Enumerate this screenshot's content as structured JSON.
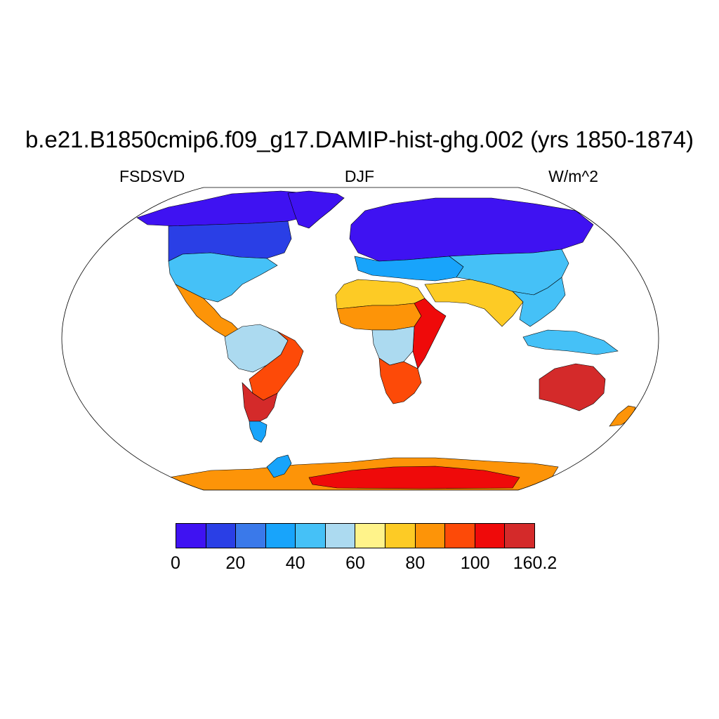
{
  "title": "b.e21.B1850cmip6.f09_g17.DAMIP-hist-ghg.002 (yrs 1850-1874)",
  "variable": "FSDSVD",
  "season": "DJF",
  "units": "W/m^2",
  "colorbar": {
    "colors": [
      "#3f12f2",
      "#2a3fe6",
      "#3a79ea",
      "#18a4fb",
      "#45c1f7",
      "#acdaf0",
      "#fff38a",
      "#fdcb25",
      "#fd9408",
      "#fd4a08",
      "#ef0a0a",
      "#d42a2a"
    ],
    "labels": [
      {
        "text": "0",
        "index": 0
      },
      {
        "text": "20",
        "index": 2
      },
      {
        "text": "40",
        "index": 4
      },
      {
        "text": "60",
        "index": 6
      },
      {
        "text": "80",
        "index": 8
      },
      {
        "text": "100",
        "index": 10
      },
      {
        "text": "160.2",
        "index": 12
      }
    ]
  },
  "map": {
    "projection": "Robinson",
    "ocean_color": "#ffffff",
    "regions": [
      {
        "id": "north-america-arctic",
        "level": 0
      },
      {
        "id": "greenland",
        "level": 0
      },
      {
        "id": "canada",
        "level": 1
      },
      {
        "id": "united-states",
        "level": 4
      },
      {
        "id": "central-america",
        "level": 8
      },
      {
        "id": "amazon",
        "level": 5
      },
      {
        "id": "south-america-east",
        "level": 9
      },
      {
        "id": "argentina",
        "level": 11
      },
      {
        "id": "patagonia",
        "level": 3
      },
      {
        "id": "eurasia-north",
        "level": 0
      },
      {
        "id": "europe",
        "level": 3
      },
      {
        "id": "asia-central",
        "level": 4
      },
      {
        "id": "sahara",
        "level": 7
      },
      {
        "id": "sahel",
        "level": 8
      },
      {
        "id": "east-africa",
        "level": 10
      },
      {
        "id": "central-africa",
        "level": 5
      },
      {
        "id": "southern-africa",
        "level": 9
      },
      {
        "id": "arabia-india",
        "level": 7
      },
      {
        "id": "southeast-asia",
        "level": 4
      },
      {
        "id": "maritime-continent",
        "level": 4
      },
      {
        "id": "australia",
        "level": 11
      },
      {
        "id": "new-zealand",
        "level": 8
      },
      {
        "id": "antarctica-coast",
        "level": 8
      },
      {
        "id": "antarctica-interior",
        "level": 10
      },
      {
        "id": "antarctic-peninsula",
        "level": 3
      }
    ]
  }
}
